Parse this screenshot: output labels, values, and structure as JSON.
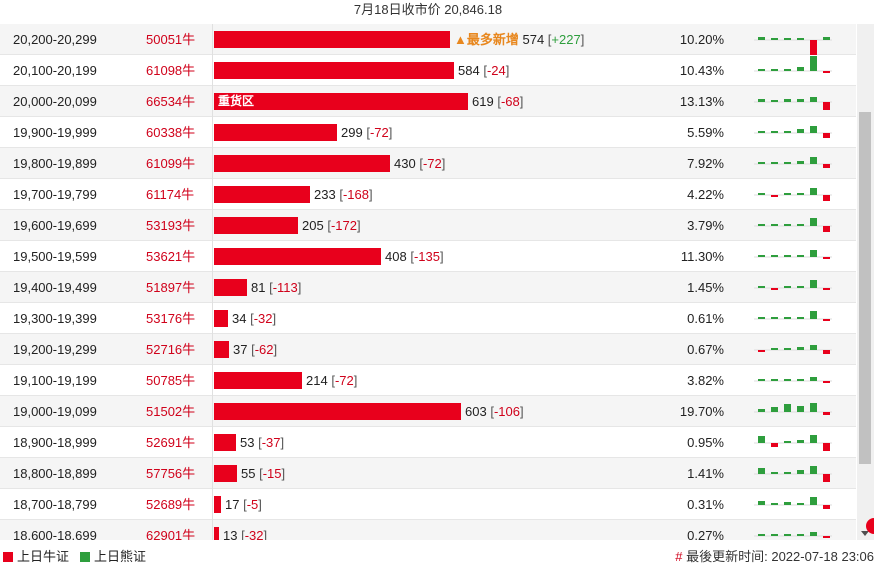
{
  "header": {
    "title": "7月18日收市价 20,846.18"
  },
  "colors": {
    "bull": "#e8001c",
    "bear": "#2e9e3d",
    "tag": "#e8871e"
  },
  "rows": [
    {
      "range": "20,200-20,299",
      "code": "50051牛",
      "bar_value": 574,
      "change": "+227",
      "tag": "▲最多新增",
      "pct": "10.20%",
      "spark": [
        3,
        2,
        0,
        2,
        -16,
        3
      ]
    },
    {
      "range": "20,100-20,199",
      "code": "61098牛",
      "bar_value": 584,
      "change": "-24",
      "pct": "10.43%",
      "spark": [
        1,
        1,
        1,
        4,
        15,
        -1
      ]
    },
    {
      "range": "20,000-20,099",
      "code": "66534牛",
      "bar_value": 619,
      "change": "-68",
      "label": "重货区",
      "pct": "13.13%",
      "spark": [
        3,
        2,
        3,
        3,
        5,
        -8
      ]
    },
    {
      "range": "19,900-19,999",
      "code": "60338牛",
      "bar_value": 299,
      "change": "-72",
      "pct": "5.59%",
      "spark": [
        1,
        1,
        2,
        4,
        7,
        -5
      ]
    },
    {
      "range": "19,800-19,899",
      "code": "61099牛",
      "bar_value": 430,
      "change": "-72",
      "pct": "7.92%",
      "spark": [
        1,
        1,
        2,
        3,
        7,
        -4
      ]
    },
    {
      "range": "19,700-19,799",
      "code": "61174牛",
      "bar_value": 233,
      "change": "-168",
      "pct": "4.22%",
      "spark": [
        1,
        -1,
        1,
        2,
        7,
        -6
      ]
    },
    {
      "range": "19,600-19,699",
      "code": "53193牛",
      "bar_value": 205,
      "change": "-172",
      "pct": "3.79%",
      "spark": [
        1,
        1,
        1,
        1,
        8,
        -6
      ]
    },
    {
      "range": "19,500-19,599",
      "code": "53621牛",
      "bar_value": 408,
      "change": "-135",
      "pct": "11.30%",
      "spark": [
        2,
        1,
        1,
        2,
        7,
        -2
      ]
    },
    {
      "range": "19,400-19,499",
      "code": "51897牛",
      "bar_value": 81,
      "change": "-113",
      "pct": "1.45%",
      "spark": [
        1,
        -1,
        1,
        2,
        8,
        -1
      ]
    },
    {
      "range": "19,300-19,399",
      "code": "53176牛",
      "bar_value": 34,
      "change": "-32",
      "pct": "0.61%",
      "spark": [
        1,
        1,
        1,
        1,
        8,
        -2
      ]
    },
    {
      "range": "19,200-19,299",
      "code": "52716牛",
      "bar_value": 37,
      "change": "-62",
      "pct": "0.67%",
      "spark": [
        -1,
        1,
        1,
        3,
        5,
        -4
      ]
    },
    {
      "range": "19,100-19,199",
      "code": "50785牛",
      "bar_value": 214,
      "change": "-72",
      "pct": "3.82%",
      "spark": [
        2,
        1,
        1,
        2,
        4,
        -2
      ]
    },
    {
      "range": "19,000-19,099",
      "code": "51502牛",
      "bar_value": 603,
      "change": "-106",
      "pct": "19.70%",
      "spark": [
        3,
        5,
        8,
        6,
        9,
        -3
      ]
    },
    {
      "range": "18,900-18,999",
      "code": "52691牛",
      "bar_value": 53,
      "change": "-37",
      "pct": "0.95%",
      "spark": [
        7,
        -4,
        2,
        3,
        8,
        -8
      ]
    },
    {
      "range": "18,800-18,899",
      "code": "57756牛",
      "bar_value": 55,
      "change": "-15",
      "pct": "1.41%",
      "spark": [
        6,
        1,
        1,
        4,
        8,
        -8
      ]
    },
    {
      "range": "18,700-18,799",
      "code": "52689牛",
      "bar_value": 17,
      "change": "-5",
      "pct": "0.31%",
      "spark": [
        4,
        1,
        3,
        1,
        8,
        -4
      ]
    },
    {
      "range": "18,600-18,699",
      "code": "62901牛",
      "bar_value": 13,
      "change": "-32",
      "pct": "0.27%",
      "spark": [
        2,
        1,
        1,
        2,
        4,
        -2
      ]
    }
  ],
  "legend": {
    "bull_label": "上日牛证",
    "bear_label": "上日熊证"
  },
  "update": {
    "hash": "#",
    "text": "最後更新时间: 2022-07-18 23:06"
  }
}
